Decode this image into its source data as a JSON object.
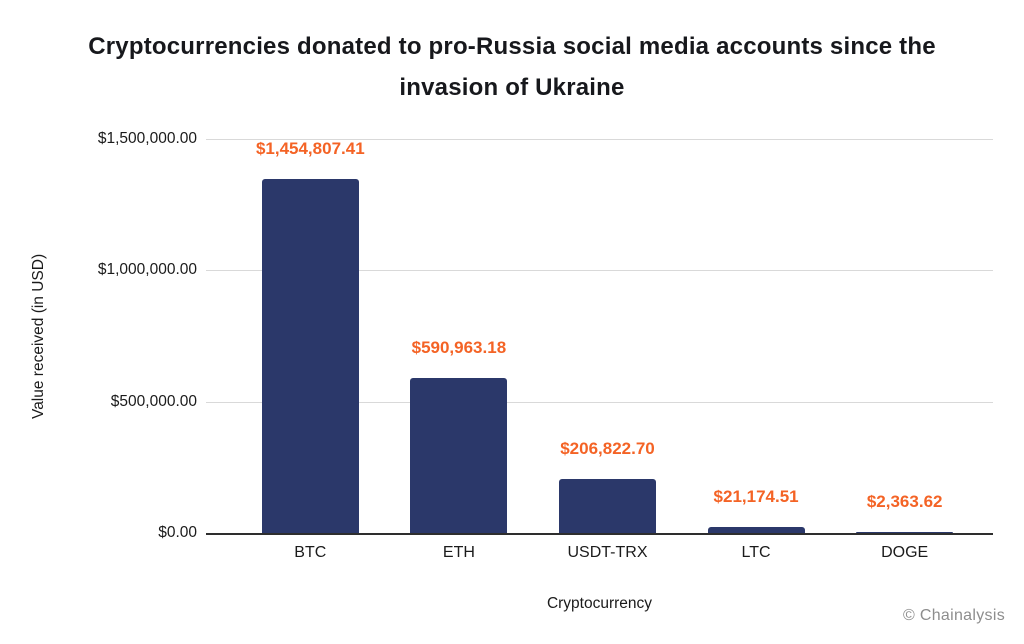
{
  "page": {
    "title_line1": "Cryptocurrencies donated to pro-Russia social media accounts since the",
    "title_line2": "invasion of Ukraine",
    "watermark": "© Chainalysis"
  },
  "axes": {
    "x_title": "Cryptocurrency",
    "y_title": "Value received (in USD)",
    "y_ticks": [
      "$1,500,000.00",
      "$1,000,000.00",
      "$500,000.00",
      "$0.00"
    ]
  },
  "colors": {
    "bar": "#2b386a",
    "value_label": "#f46325",
    "gridline": "#d9d9d9",
    "axis_line": "#2e2e2e",
    "title_text": "#17181c",
    "watermark_text": "#8d8d8d",
    "background": "#ffffff"
  },
  "chart_data": {
    "type": "bar",
    "title": "Cryptocurrencies donated to pro-Russia social media accounts since the invasion of Ukraine",
    "xlabel": "Cryptocurrency",
    "ylabel": "Value received (in USD)",
    "categories": [
      "BTC",
      "ETH",
      "USDT-TRX",
      "LTC",
      "DOGE"
    ],
    "values": [
      1454807.41,
      590963.18,
      206822.7,
      21174.51,
      2363.62
    ],
    "value_labels": [
      "$1,454,807.41",
      "$590,963.18",
      "$206,822.70",
      "$21,174.51",
      "$2,363.62"
    ],
    "ylim": [
      0,
      1500000
    ],
    "y_tick_values": [
      1500000,
      1000000,
      500000,
      0
    ],
    "grid": true,
    "legend": false,
    "source": "© Chainalysis"
  }
}
